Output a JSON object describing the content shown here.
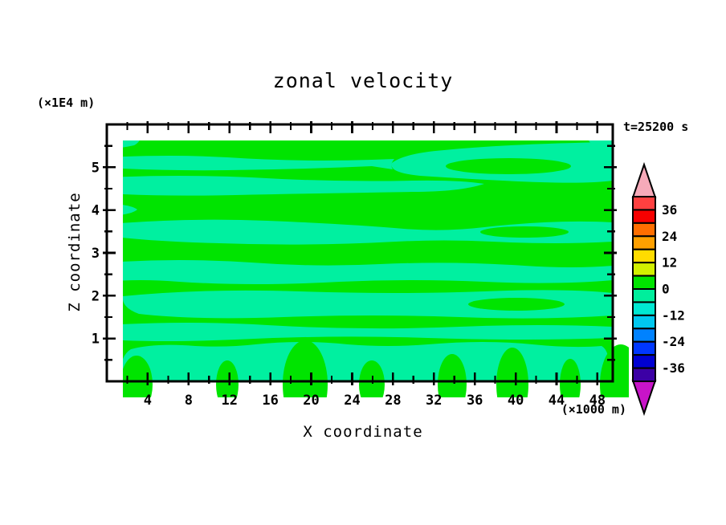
{
  "labels": {
    "title": "zonal velocity",
    "timestamp": "t=25200 s",
    "x_axis": "X coordinate",
    "z_axis": "Z coordinate",
    "x_unit": "(×1000 m)",
    "z_unit": "(×1E4 m)"
  },
  "axes": {
    "x_major_ticks": [
      4,
      8,
      12,
      16,
      20,
      24,
      28,
      32,
      36,
      40,
      44,
      48
    ],
    "x_minor_ticks": [
      2,
      6,
      10,
      14,
      18,
      22,
      26,
      30,
      34,
      38,
      42,
      46
    ],
    "z_major_ticks": [
      1,
      2,
      3,
      4,
      5
    ],
    "z_minor_ticks": [
      0.5,
      1.5,
      2.5,
      3.5,
      4.5,
      5.5
    ]
  },
  "colorbar": {
    "tick_labels": [
      "36",
      "24",
      "12",
      "0",
      "-12",
      "-24",
      "-36"
    ],
    "segments": [
      {
        "range": [
          36,
          42
        ],
        "color": "#FF4040"
      },
      {
        "range": [
          30,
          36
        ],
        "color": "#F70000"
      },
      {
        "range": [
          24,
          30
        ],
        "color": "#FF6E00"
      },
      {
        "range": [
          18,
          24
        ],
        "color": "#FFA000"
      },
      {
        "range": [
          12,
          18
        ],
        "color": "#FFDC00"
      },
      {
        "range": [
          6,
          12
        ],
        "color": "#D2F000"
      },
      {
        "range": [
          0,
          6
        ],
        "color": "#00E400"
      },
      {
        "range": [
          -6,
          0
        ],
        "color": "#00EE9C"
      },
      {
        "range": [
          -12,
          -6
        ],
        "color": "#00E8D2"
      },
      {
        "range": [
          -18,
          -12
        ],
        "color": "#00C8F0"
      },
      {
        "range": [
          -24,
          -18
        ],
        "color": "#0082FF"
      },
      {
        "range": [
          -30,
          -24
        ],
        "color": "#0037FF"
      },
      {
        "range": [
          -36,
          -30
        ],
        "color": "#0000D2"
      },
      {
        "range": [
          -42,
          -36
        ],
        "color": "#3C00A5"
      }
    ],
    "over_arrow_color": "#F6AAB9",
    "under_arrow_color": "#C814C8"
  },
  "chart_data": {
    "type": "heatmap",
    "subtype": "filled_contour",
    "title": "zonal velocity",
    "time_label": "t=25200 s",
    "xlabel": "X coordinate",
    "x_unit": "(×1000 m)",
    "x_range": [
      0,
      50
    ],
    "zlabel": "Z coordinate",
    "z_unit": "(×1E4 m)",
    "z_range": [
      0,
      6
    ],
    "contour_interval": 6,
    "colorbar_tick_values": [
      36,
      24,
      12,
      0,
      -12,
      -24,
      -36
    ],
    "colorbar_range_with_arrows": [
      -42,
      42
    ],
    "levels_visible_in_plot": [
      {
        "range": [
          0,
          6
        ],
        "color": "#00E400",
        "role": "background / positive band"
      },
      {
        "range": [
          -6,
          0
        ],
        "color": "#00F0A0",
        "role": "wavy stripe / negative band"
      }
    ],
    "pattern_note": "Entire field lies between -6 and +6: alternating wavy horizontal stripes of the two near-zero contour bands, with cellular blobs along the bottom boundary and small patches in the upper corners."
  }
}
